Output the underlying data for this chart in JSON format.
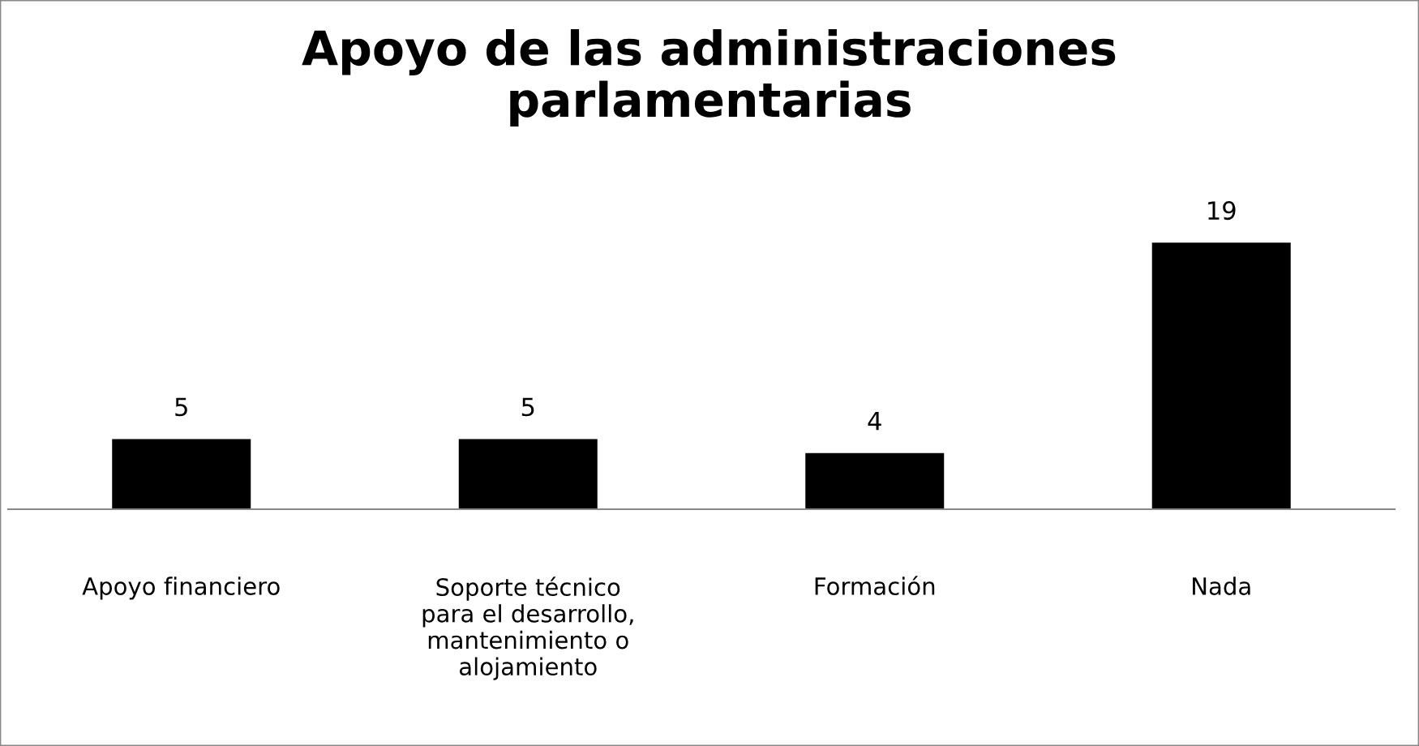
{
  "chart_data": {
    "type": "bar",
    "title": "Apoyo de las administraciones\nparlamentarias",
    "categories": [
      "Apoyo financiero",
      "Soporte técnico\npara el desarrollo,\nmantenimiento o\nalojamiento",
      "Formación",
      "Nada"
    ],
    "values": [
      5,
      5,
      4,
      19
    ],
    "color": "#000000",
    "data_labels": true,
    "grid": false,
    "legend": false
  }
}
